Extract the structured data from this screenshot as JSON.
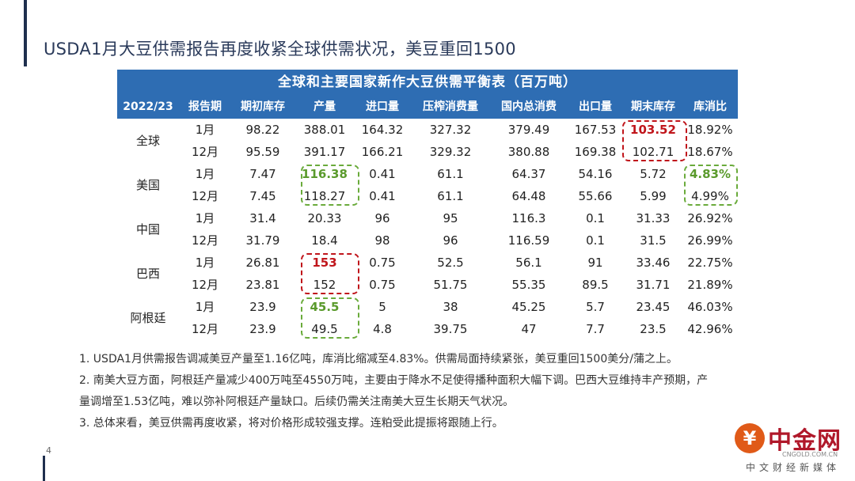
{
  "slide": {
    "title": "USDA1月大豆供需报告再度收紧全球供需状况，美豆重回1500",
    "page_number": "4"
  },
  "table": {
    "title": "全球和主要国家新作大豆供需平衡表（百万吨）",
    "headers": [
      "2022/23",
      "报告期",
      "期初库存",
      "产量",
      "进口量",
      "压榨消费量",
      "国内总消费",
      "出口量",
      "期末库存",
      "库消比"
    ],
    "groups": [
      {
        "country": "全球",
        "rows": [
          [
            "1月",
            "98.22",
            "388.01",
            "164.32",
            "327.32",
            "379.49",
            "167.53",
            "103.52",
            "18.92%"
          ],
          [
            "12月",
            "95.59",
            "391.17",
            "166.21",
            "329.32",
            "380.88",
            "169.38",
            "102.71",
            "18.67%"
          ]
        ]
      },
      {
        "country": "美国",
        "rows": [
          [
            "1月",
            "7.47",
            "116.38",
            "0.41",
            "61.1",
            "64.37",
            "54.16",
            "5.72",
            "4.83%"
          ],
          [
            "12月",
            "7.45",
            "118.27",
            "0.41",
            "61.1",
            "64.48",
            "55.66",
            "5.99",
            "4.99%"
          ]
        ]
      },
      {
        "country": "中国",
        "rows": [
          [
            "1月",
            "31.4",
            "20.33",
            "96",
            "95",
            "116.3",
            "0.1",
            "31.33",
            "26.92%"
          ],
          [
            "12月",
            "31.79",
            "18.4",
            "98",
            "96",
            "116.59",
            "0.1",
            "31.5",
            "26.99%"
          ]
        ]
      },
      {
        "country": "巴西",
        "rows": [
          [
            "1月",
            "26.81",
            "153",
            "0.75",
            "52.5",
            "56.1",
            "91",
            "33.46",
            "22.75%"
          ],
          [
            "12月",
            "23.81",
            "152",
            "0.75",
            "51.75",
            "55.35",
            "89.5",
            "31.71",
            "21.89%"
          ]
        ]
      },
      {
        "country": "阿根廷",
        "rows": [
          [
            "1月",
            "23.9",
            "45.5",
            "5",
            "38",
            "45.25",
            "5.7",
            "23.45",
            "46.03%"
          ],
          [
            "12月",
            "23.9",
            "49.5",
            "4.8",
            "39.75",
            "47",
            "7.7",
            "23.5",
            "42.96%"
          ]
        ]
      }
    ],
    "highlight_colors": {
      "red": "#c0151b",
      "green": "#5a9a2c",
      "header_bg": "#2e6db3"
    }
  },
  "notes": [
    "1. USDA1月供需报告调减美豆产量至1.16亿吨，库消比缩减至4.83%。供需局面持续紧张，美豆重回1500美分/蒲之上。",
    "2. 南美大豆方面，阿根廷产量减少400万吨至4550万吨，主要由于降水不足使得播种面积大幅下调。巴西大豆维持丰产预期，产",
    "量调增至1.53亿吨，难以弥补阿根廷产量缺口。后续仍需关注南美大豆生长期天气状况。",
    "3. 总体来看，美豆供需再度收紧，将对价格形成较强支撑。连粕受此提振将跟随上行。"
  ],
  "logo": {
    "mark": "¥",
    "name": "中金网",
    "url": "CNGOLD.COM.CN",
    "tagline": "中文财经新媒体"
  }
}
